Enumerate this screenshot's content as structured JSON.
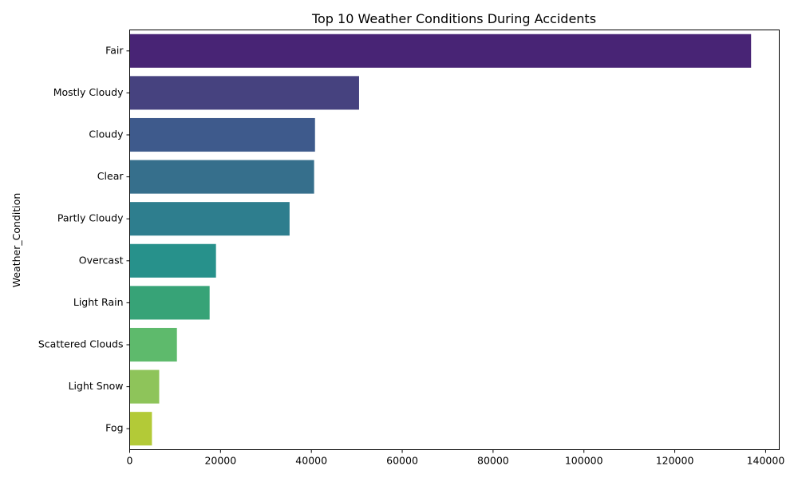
{
  "chart_data": {
    "type": "bar",
    "orientation": "horizontal",
    "title": "Top 10 Weather Conditions During Accidents",
    "xlabel": "",
    "ylabel": "Weather_Condition",
    "categories": [
      "Fair",
      "Mostly Cloudy",
      "Cloudy",
      "Clear",
      "Partly Cloudy",
      "Overcast",
      "Light Rain",
      "Scattered Clouds",
      "Light Snow",
      "Fog"
    ],
    "values": [
      136800,
      50500,
      40800,
      40600,
      35200,
      19000,
      17600,
      10400,
      6500,
      4900
    ],
    "colors": [
      "#482475",
      "#46427f",
      "#3e5a8c",
      "#366f8c",
      "#2e7e8e",
      "#27918b",
      "#37a377",
      "#5eba6c",
      "#8ec45a",
      "#b3ca37"
    ],
    "xlim": [
      0,
      143000
    ],
    "xticks": [
      0,
      20000,
      40000,
      60000,
      80000,
      100000,
      120000,
      140000
    ],
    "xtick_labels": [
      "0",
      "20000",
      "40000",
      "60000",
      "80000",
      "100000",
      "120000",
      "140000"
    ],
    "grid": false,
    "legend": "none"
  }
}
